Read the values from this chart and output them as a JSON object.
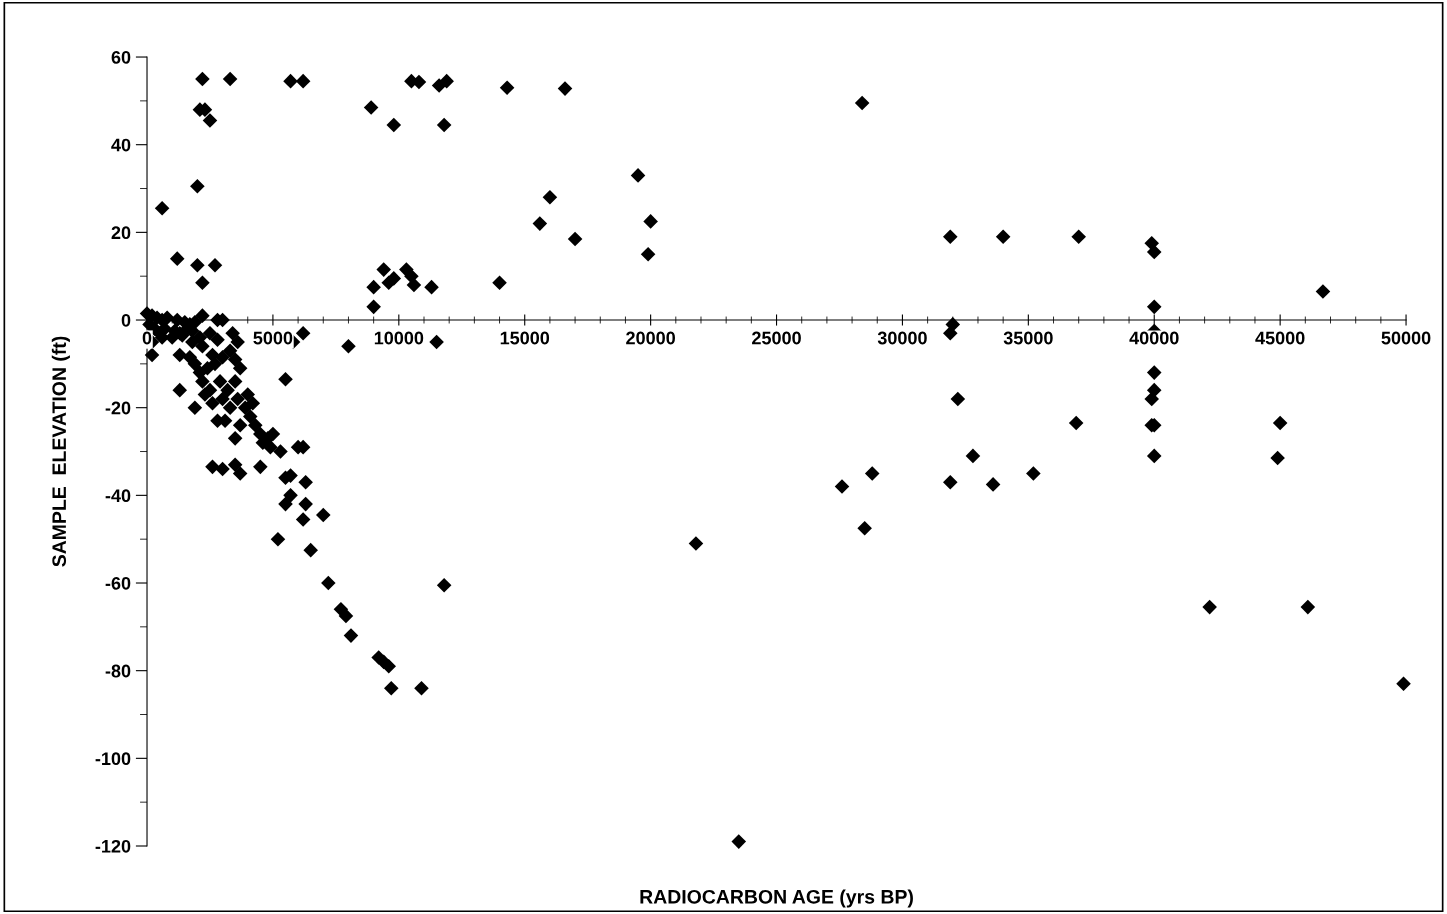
{
  "chart_data": {
    "type": "scatter",
    "xlabel": "RADIOCARBON AGE (yrs BP)",
    "ylabel": "SAMPLE  ELEVATION (ft)",
    "marker": "diamond",
    "grid": false,
    "xlim": [
      0,
      50000
    ],
    "xticks": [
      0,
      5000,
      10000,
      15000,
      20000,
      25000,
      30000,
      35000,
      40000,
      45000,
      50000
    ],
    "ylim": [
      -120,
      60
    ],
    "yticks": [
      -120,
      -100,
      -80,
      -60,
      -40,
      -20,
      0,
      20,
      40,
      60
    ],
    "series": [
      {
        "color": "#000000",
        "x": [
          2200,
          3300,
          5700,
          6200,
          10500,
          10800,
          11600,
          11900,
          14300,
          16600,
          28400,
          2100,
          2300,
          2500,
          8900,
          9800,
          11800,
          2000,
          600,
          19500,
          16000,
          15600,
          20000,
          17000,
          19900,
          1200,
          2000,
          2700,
          2200,
          14000,
          9000,
          9400,
          9800,
          10300,
          9600,
          10500,
          10600,
          11300,
          9000,
          31900,
          34000,
          37000,
          39900,
          40000,
          46700,
          40000,
          32000,
          31900,
          40000,
          40000,
          40000,
          39900,
          40000,
          39900,
          40000,
          32200,
          32800,
          31900,
          33600,
          35200,
          36900,
          45000,
          44900,
          28800,
          27600,
          28500,
          21800,
          42200,
          46100,
          49900,
          23500,
          11800,
          11500,
          8000,
          6200,
          5800,
          5500,
          0,
          200,
          400,
          600,
          800,
          1200,
          1500,
          1700,
          1900,
          2200,
          2800,
          3000,
          100,
          300,
          500,
          700,
          1100,
          1300,
          1600,
          1800,
          2100,
          2500,
          2800,
          200,
          600,
          1000,
          1400,
          1800,
          2200,
          2600,
          3400,
          3600,
          3300,
          200,
          1300,
          1700,
          1900,
          2100,
          2400,
          2700,
          3000,
          3500,
          3700,
          1300,
          1900,
          2200,
          2300,
          2500,
          2600,
          2900,
          3000,
          3200,
          3300,
          3500,
          3600,
          2800,
          3100,
          3500,
          3700,
          3900,
          4000,
          4200,
          4100,
          4300,
          4500,
          4600,
          4800,
          5000,
          4900,
          2600,
          3000,
          3500,
          3700,
          4500,
          5300,
          5500,
          5700,
          5500,
          5700,
          5200,
          6000,
          6200,
          6300,
          6300,
          6200,
          6500,
          7000,
          7200,
          7700,
          7900,
          8100,
          9200,
          9400,
          9600,
          9700,
          10900
        ],
        "values": [
          55,
          55,
          54.5,
          54.5,
          54.5,
          54.3,
          53.5,
          54.5,
          53,
          52.8,
          49.5,
          48,
          48,
          45.5,
          48.5,
          44.5,
          44.5,
          30.5,
          25.5,
          33,
          28,
          22,
          22.5,
          18.5,
          15,
          14,
          12.5,
          12.5,
          8.5,
          8.5,
          7.5,
          11.5,
          9.5,
          11.5,
          8.5,
          10,
          8,
          7.5,
          3,
          19,
          19,
          19,
          17.5,
          15.5,
          6.5,
          3,
          -1,
          -3,
          -2.5,
          -12,
          -16,
          -18,
          -24,
          -24,
          -31,
          -18,
          -31,
          -37,
          -37.5,
          -35,
          -23.5,
          -23.5,
          -31.5,
          -35,
          -38,
          -47.5,
          -51,
          -65.5,
          -65.5,
          -83,
          -119,
          -60.5,
          -5,
          -6,
          -3,
          -5,
          -13.5,
          1.5,
          1,
          0.5,
          0,
          0.5,
          0,
          -0.5,
          -1,
          -0.5,
          1,
          0,
          0,
          -1,
          -2,
          -3,
          -2,
          -2.5,
          -3,
          -2,
          -2.5,
          -4,
          -3,
          -4.5,
          -5,
          -4,
          -4,
          -3.5,
          -5,
          -6,
          -8,
          -3,
          -5,
          -7,
          -8,
          -8,
          -8.5,
          -10,
          -12,
          -11,
          -10,
          -8.5,
          -9,
          -11,
          -16,
          -20,
          -14,
          -17,
          -16,
          -19,
          -14,
          -18,
          -16,
          -20,
          -14,
          -18,
          -23,
          -23,
          -27,
          -24,
          -20,
          -17,
          -19,
          -22,
          -24,
          -26,
          -28,
          -27,
          -26,
          -29,
          -33.5,
          -34,
          -33,
          -35,
          -33.5,
          -30,
          -36,
          -35.5,
          -42,
          -40,
          -50,
          -29,
          -29,
          -37,
          -42,
          -45.5,
          -52.5,
          -44.5,
          -60,
          -66,
          -67.5,
          -72,
          -77,
          -78,
          -79,
          -84,
          -84
        ]
      }
    ]
  }
}
